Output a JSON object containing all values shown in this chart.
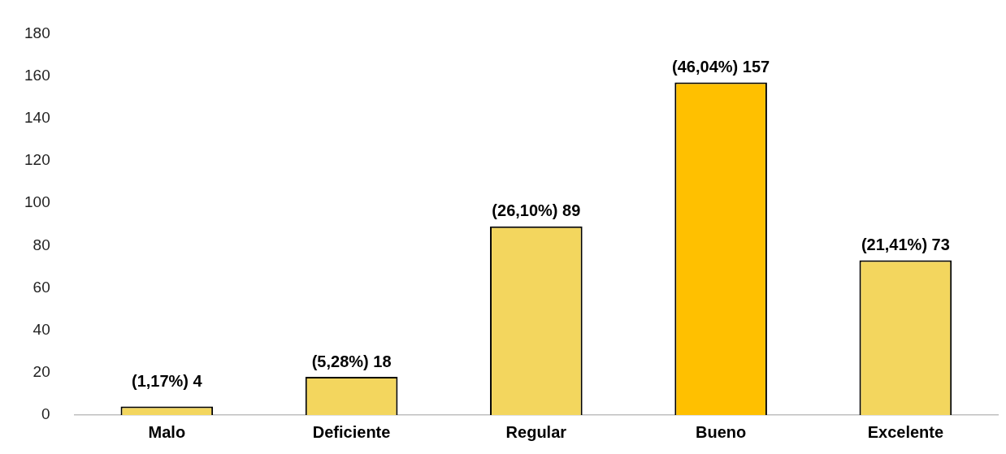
{
  "chart_data": {
    "type": "bar",
    "categories": [
      "Malo",
      "Deficiente",
      "Regular",
      "Bueno",
      "Excelente"
    ],
    "values": [
      4,
      18,
      89,
      157,
      73
    ],
    "colors": [
      "#f3d65e",
      "#f3d65e",
      "#f3d65e",
      "#ffc000",
      "#f3d65e"
    ],
    "value_labels": [
      "(1,17%) 4",
      "(5,28%) 18",
      "(26,10%) 89",
      "(46,04%) 157",
      "(21,41%) 73"
    ],
    "ylim": [
      0,
      180
    ],
    "yticks": [
      0,
      20,
      40,
      60,
      80,
      100,
      120,
      140,
      160,
      180
    ],
    "grid": false,
    "legend": false
  }
}
